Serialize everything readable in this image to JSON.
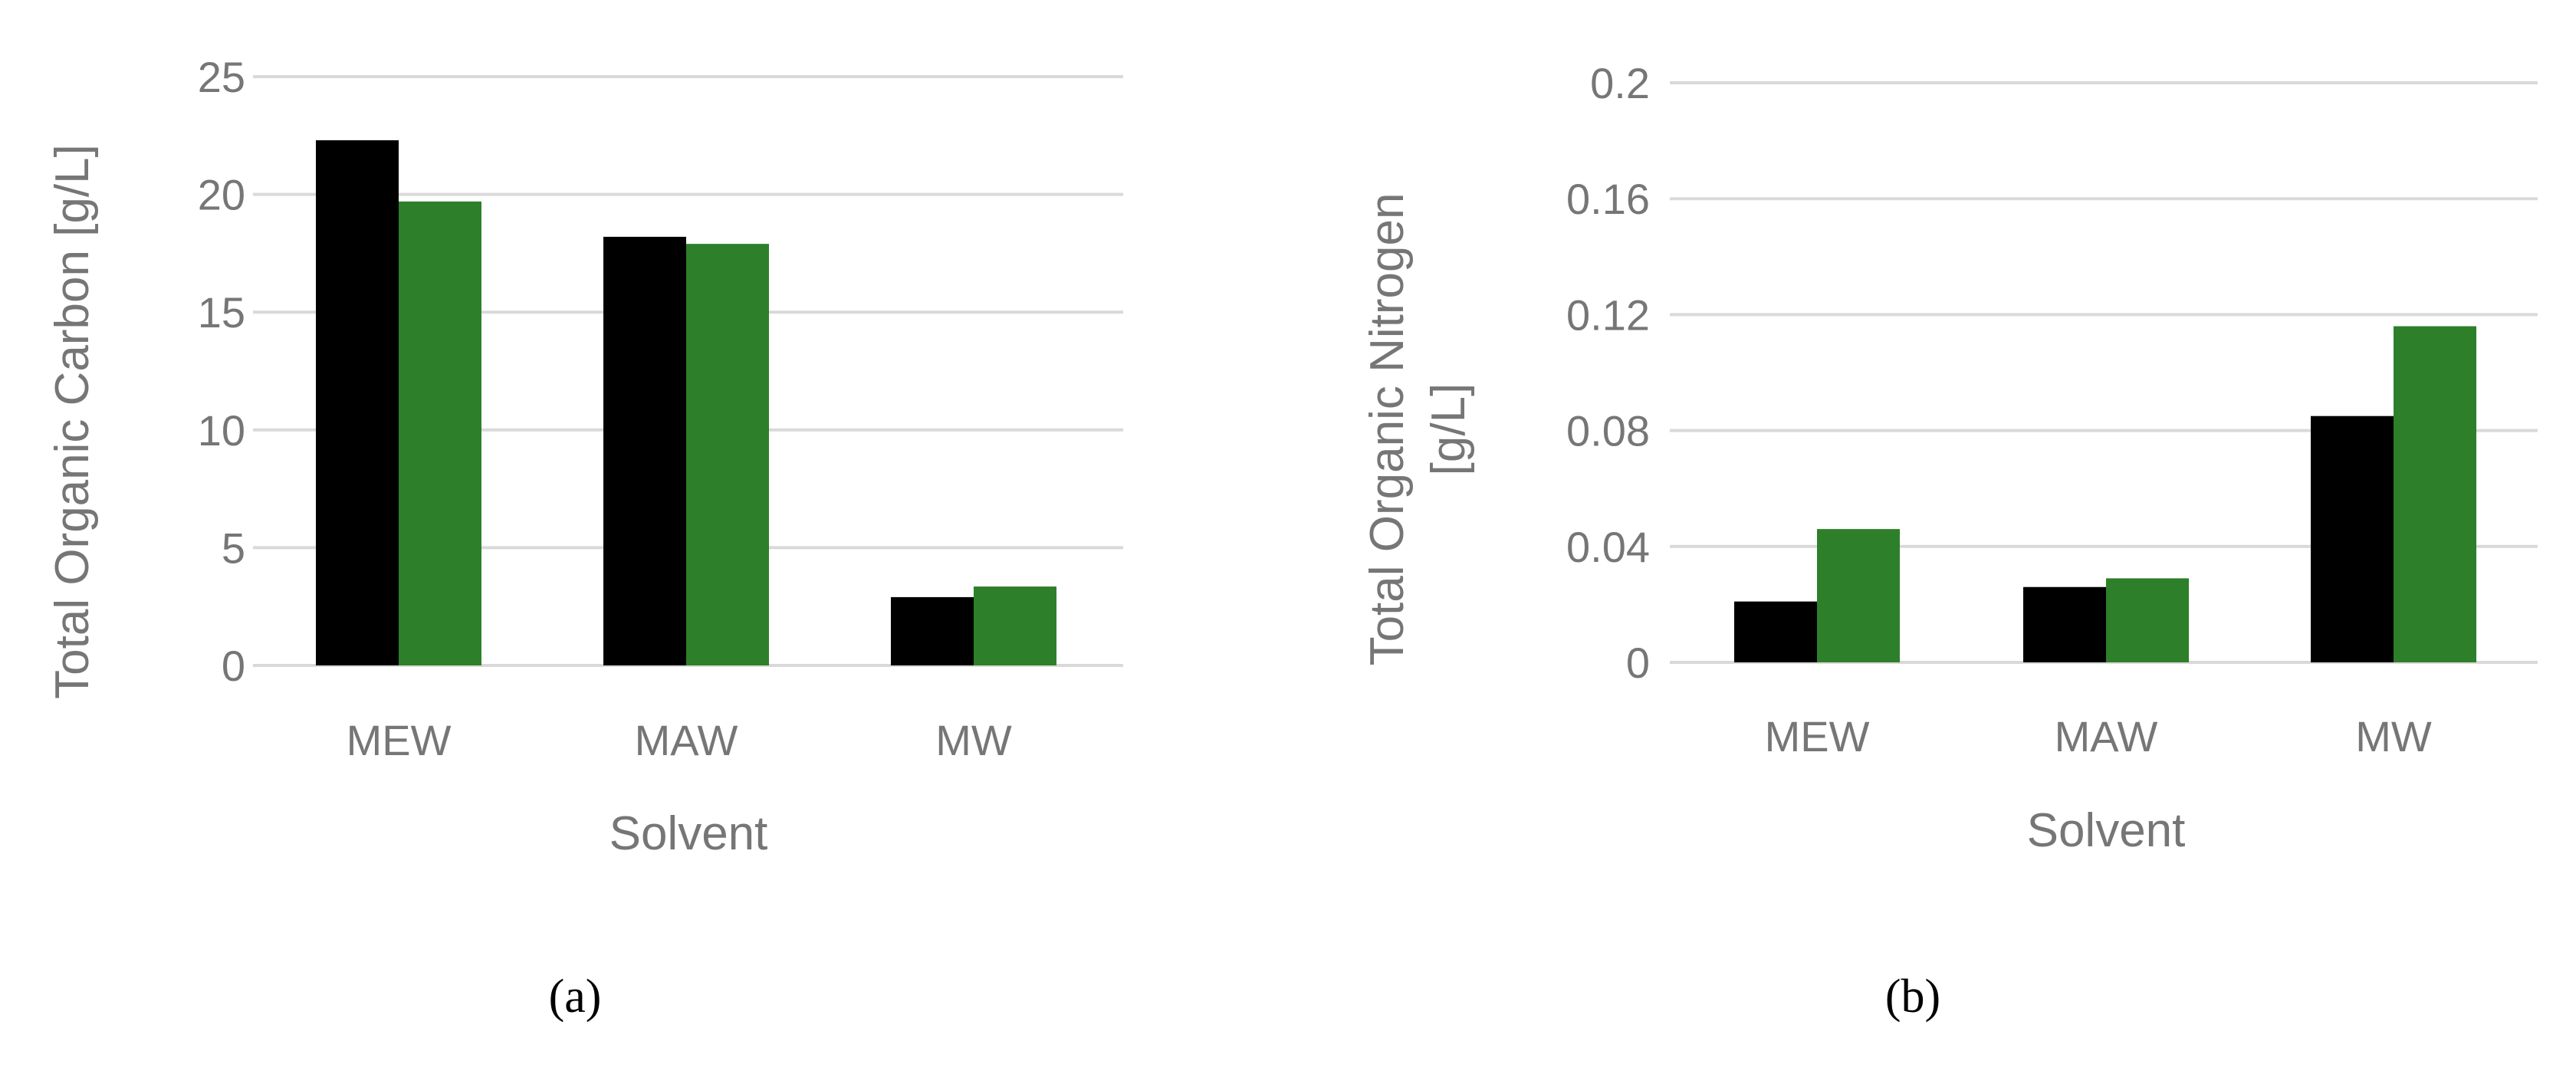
{
  "colors": {
    "series_1": "#000000",
    "series_2": "#2e7f2a",
    "grid": "#d9d9d9",
    "text": "#767676"
  },
  "chart_data": [
    {
      "panel_label": "(a)",
      "type": "bar",
      "categories": [
        "MEW",
        "MAW",
        "MW"
      ],
      "series": [
        {
          "values": [
            22.3,
            18.2,
            2.9
          ]
        },
        {
          "values": [
            19.7,
            17.9,
            3.35
          ]
        }
      ],
      "xlabel": "Solvent",
      "ylabel": "Total Organic Carbon [g/L]",
      "ylim": [
        0,
        25
      ],
      "yticks": [
        "0",
        "5",
        "10",
        "15",
        "20",
        "25"
      ],
      "grid": true
    },
    {
      "panel_label": "(b)",
      "type": "bar",
      "categories": [
        "MEW",
        "MAW",
        "MW"
      ],
      "series": [
        {
          "values": [
            0.021,
            0.026,
            0.085
          ]
        },
        {
          "values": [
            0.046,
            0.029,
            0.116
          ]
        }
      ],
      "xlabel": "Solvent",
      "ylabel_lines": [
        "Total Organic Nitrogen",
        "[g/L]"
      ],
      "ylim": [
        0,
        0.2
      ],
      "yticks": [
        "0",
        "0.04",
        "0.08",
        "0.12",
        "0.16",
        "0.2"
      ],
      "grid": true
    }
  ]
}
